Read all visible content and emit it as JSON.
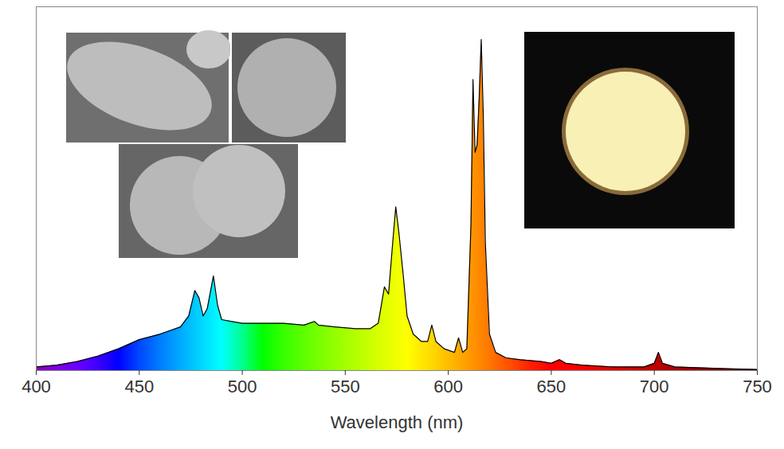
{
  "chart_data": {
    "type": "area",
    "xlabel": "Wavelength (nm)",
    "x": [
      400,
      410,
      420,
      430,
      440,
      450,
      460,
      465,
      470,
      474,
      477,
      479,
      481,
      483,
      486,
      488,
      490,
      495,
      500,
      510,
      520,
      530,
      535,
      537,
      545,
      555,
      562,
      566,
      569,
      571,
      573,
      574.5,
      576,
      578,
      580,
      583,
      587,
      590,
      592,
      594,
      598,
      603,
      605,
      607,
      609,
      611,
      612,
      613,
      614,
      615,
      616,
      617,
      618,
      620,
      623,
      628,
      635,
      645,
      650,
      654,
      657,
      665,
      680,
      695,
      700,
      702,
      704,
      710,
      720,
      735,
      750
    ],
    "values": [
      1,
      1.5,
      2.5,
      4,
      6,
      8.5,
      10,
      11,
      12,
      15,
      22,
      20,
      15,
      17,
      26,
      18,
      14,
      13.5,
      13,
      13,
      13,
      12.5,
      13.5,
      12.5,
      12,
      11.5,
      11.5,
      13,
      23,
      21,
      35,
      45,
      38,
      27,
      15,
      10,
      8,
      8,
      12.5,
      8,
      6,
      5,
      9,
      5,
      6,
      40,
      80,
      60,
      62,
      75,
      91,
      70,
      35,
      10,
      5,
      3.5,
      3,
      2.5,
      2,
      3,
      2,
      1.5,
      1,
      1,
      2,
      5,
      2,
      1,
      0.8,
      0.5,
      0.3
    ],
    "color": "#000000",
    "xlim": [
      400,
      750
    ],
    "xticks": [
      400,
      450,
      500,
      550,
      600,
      650,
      700,
      750
    ],
    "ylim": [
      0,
      100
    ],
    "tick_labels": "x"
  }
}
